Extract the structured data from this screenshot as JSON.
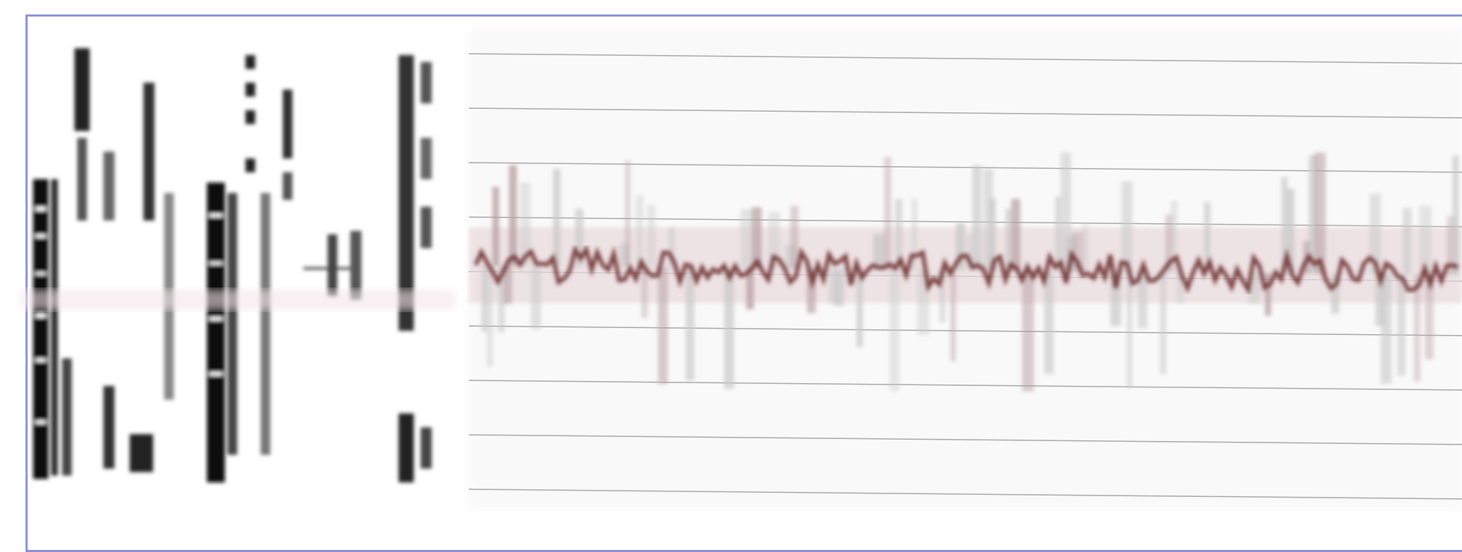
{
  "scan": {
    "frame_color": "#8a8fd4",
    "ink_color": "#141414",
    "trace_color": "#6b2a2a",
    "grid_color": "#8f8f8f",
    "background_color": "#ffffff"
  }
}
